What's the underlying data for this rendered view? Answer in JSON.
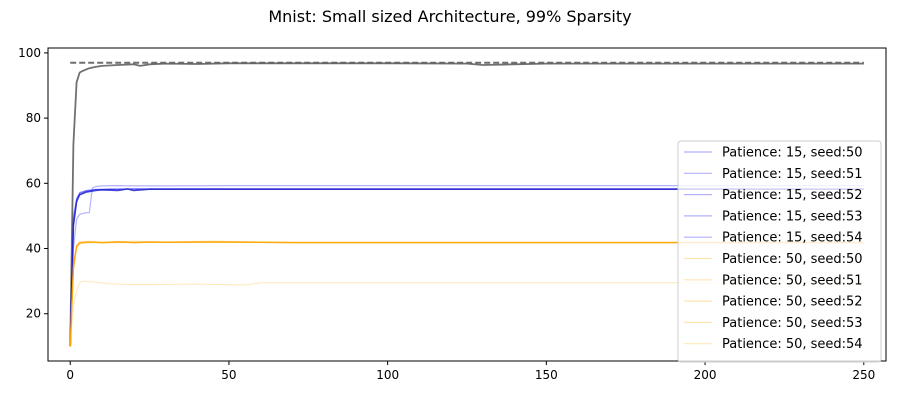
{
  "chart_data": {
    "type": "line",
    "title": "Mnist: Small sized Architecture, 99% Sparsity",
    "xlabel": "",
    "ylabel": "",
    "xlim": [
      -7,
      257
    ],
    "ylim": [
      5.5,
      101.5
    ],
    "xticks": [
      0,
      50,
      100,
      150,
      200,
      250
    ],
    "yticks": [
      20,
      40,
      60,
      80,
      100
    ],
    "grid": false,
    "legend_position": "right",
    "series": [
      {
        "name": "",
        "color": "#555555",
        "opacity": 0.85,
        "width": 2,
        "dash": "6,3",
        "x": [
          0,
          250
        ],
        "y": [
          97,
          97
        ]
      },
      {
        "name": "",
        "color": "#606060",
        "opacity": 0.9,
        "width": 1.8,
        "dash": "",
        "x": [
          0,
          1,
          2,
          3,
          4,
          6,
          8,
          10,
          15,
          20,
          22,
          25,
          30,
          40,
          50,
          75,
          100,
          125,
          130,
          150,
          200,
          250
        ],
        "y": [
          10,
          72,
          91,
          94,
          94.5,
          95.3,
          95.7,
          96,
          96.3,
          96.5,
          96.0,
          96.5,
          96.7,
          96.6,
          96.8,
          96.8,
          96.8,
          96.7,
          96.3,
          96.7,
          96.7,
          96.7
        ]
      },
      {
        "name": "Patience: 15, seed:50",
        "color": "#0000ff",
        "opacity": 0.3,
        "width": 1.2,
        "dash": "",
        "x": [
          0,
          1,
          2,
          3,
          5,
          6,
          7,
          8,
          10,
          15,
          20,
          30,
          50,
          250
        ],
        "y": [
          10,
          40,
          49,
          50.5,
          51,
          51,
          58.5,
          59,
          59.2,
          59.3,
          59.2,
          59.2,
          59.3,
          59.3
        ]
      },
      {
        "name": "Patience: 15, seed:51",
        "color": "#0000ff",
        "opacity": 0.3,
        "width": 1,
        "dash": "",
        "x": [
          0,
          1,
          2,
          3,
          5,
          8,
          12,
          20,
          250
        ],
        "y": [
          10,
          48,
          55,
          57,
          57.8,
          58.2,
          58.3,
          58.3,
          58.3
        ]
      },
      {
        "name": "Patience: 15, seed:52",
        "color": "#0000ff",
        "opacity": 0.3,
        "width": 1,
        "dash": "",
        "x": [
          0,
          1,
          2,
          3,
          5,
          8,
          12,
          20,
          250
        ],
        "y": [
          10,
          50,
          55.5,
          57,
          57.5,
          58,
          58.1,
          58.2,
          58.2
        ]
      },
      {
        "name": "Patience: 15, seed:53",
        "color": "#0000ff",
        "opacity": 0.3,
        "width": 1,
        "dash": "",
        "x": [
          0,
          1,
          2,
          3,
          5,
          8,
          12,
          20,
          250
        ],
        "y": [
          10,
          47,
          54,
          56.5,
          57.5,
          58,
          58.2,
          58.3,
          58.3
        ]
      },
      {
        "name": "Patience: 15, seed:54",
        "color": "#0000ff",
        "opacity": 0.3,
        "width": 1,
        "dash": "",
        "x": [
          0,
          1,
          2,
          3,
          5,
          8,
          12,
          20,
          250
        ],
        "y": [
          10,
          49,
          55,
          57.2,
          57.8,
          58.1,
          58.2,
          58.3,
          58.3
        ]
      },
      {
        "name": "",
        "color": "#2222cc",
        "opacity": 0.85,
        "width": 1.6,
        "dash": "",
        "x": [
          0,
          1,
          2,
          3,
          5,
          8,
          10,
          15,
          18,
          20,
          25,
          30,
          50,
          100,
          250
        ],
        "y": [
          10,
          47,
          54.5,
          56.5,
          57.3,
          57.8,
          58,
          57.8,
          58.3,
          57.8,
          58.2,
          58.2,
          58.2,
          58.2,
          58.2
        ]
      },
      {
        "name": "Patience: 50, seed:50",
        "color": "#ffa500",
        "opacity": 0.3,
        "width": 1,
        "dash": "",
        "x": [
          0,
          1,
          2,
          3,
          6,
          10,
          20,
          30,
          45,
          60,
          66,
          250
        ],
        "y": [
          10,
          35,
          41,
          42,
          42.2,
          42,
          42.2,
          42,
          42.3,
          42,
          41.8,
          41.8
        ]
      },
      {
        "name": "Patience: 50, seed:51",
        "color": "#ffa500",
        "opacity": 0.3,
        "width": 1,
        "dash": "",
        "x": [
          0,
          1,
          2,
          3,
          6,
          10,
          20,
          250
        ],
        "y": [
          10,
          36,
          40.5,
          41.5,
          41.8,
          41.7,
          41.8,
          41.8
        ]
      },
      {
        "name": "Patience: 50, seed:52",
        "color": "#ffa500",
        "opacity": 0.3,
        "width": 1,
        "dash": "",
        "x": [
          0,
          1,
          2,
          3,
          6,
          10,
          20,
          250
        ],
        "y": [
          10,
          33,
          40,
          41.5,
          41.9,
          41.8,
          41.9,
          41.9
        ]
      },
      {
        "name": "Patience: 50, seed:53",
        "color": "#ffa500",
        "opacity": 0.3,
        "width": 1,
        "dash": "",
        "x": [
          0,
          1,
          2,
          3,
          6,
          10,
          20,
          250
        ],
        "y": [
          10,
          35,
          40.8,
          41.7,
          41.9,
          41.8,
          41.9,
          41.9
        ]
      },
      {
        "name": "Patience: 50, seed:54",
        "color": "#ffcc66",
        "opacity": 0.45,
        "width": 1,
        "dash": "",
        "x": [
          0,
          1,
          2,
          3,
          4,
          8,
          12,
          20,
          30,
          40,
          55,
          60,
          250
        ],
        "y": [
          10,
          22,
          27,
          29.5,
          30,
          29.7,
          29.2,
          28.9,
          29,
          29.1,
          28.8,
          29.5,
          29.5
        ]
      },
      {
        "name": "",
        "color": "#ffa500",
        "opacity": 0.85,
        "width": 1.5,
        "dash": "",
        "x": [
          0,
          1,
          2,
          3,
          6,
          10,
          15,
          20,
          25,
          30,
          40,
          50,
          60,
          70,
          100,
          250
        ],
        "y": [
          10,
          34,
          40.7,
          41.8,
          42,
          41.8,
          42.1,
          41.8,
          42,
          41.9,
          42,
          42,
          41.9,
          41.8,
          41.8,
          41.8
        ]
      }
    ]
  }
}
